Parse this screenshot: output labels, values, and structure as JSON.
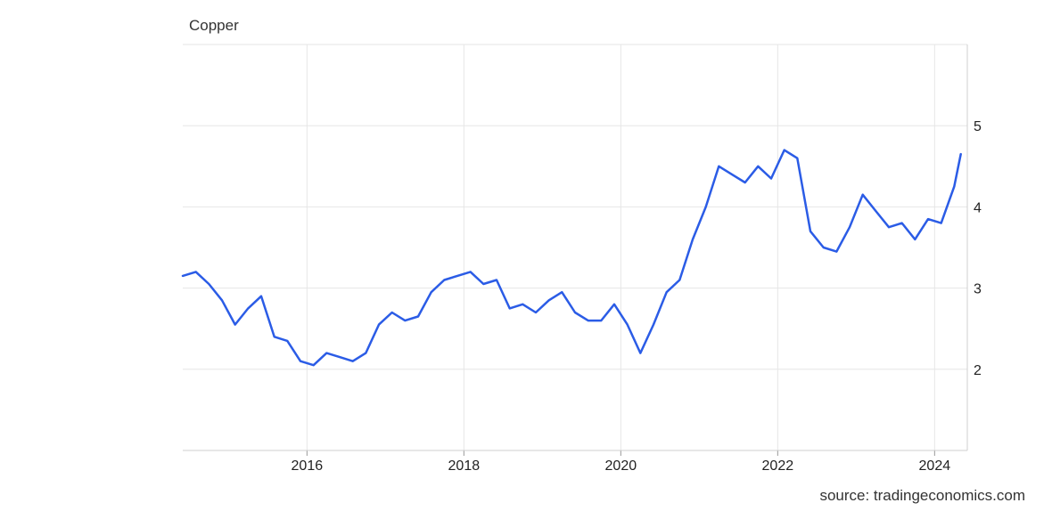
{
  "chart_data": {
    "type": "line",
    "title": "Copper",
    "xlabel": "",
    "ylabel": "",
    "ylim": [
      1,
      6
    ],
    "xlim": [
      "2014-06",
      "2024-06"
    ],
    "x_ticks": [
      "2016",
      "2018",
      "2020",
      "2022",
      "2024"
    ],
    "y_ticks": [
      "2",
      "3",
      "4",
      "5"
    ],
    "grid": true,
    "legend": "none",
    "line_color": "#2b5ce6",
    "series": [
      {
        "x": [
          "2014-06",
          "2014-08",
          "2014-10",
          "2014-12",
          "2015-02",
          "2015-04",
          "2015-06",
          "2015-08",
          "2015-10",
          "2015-12",
          "2016-02",
          "2016-04",
          "2016-06",
          "2016-08",
          "2016-10",
          "2016-12",
          "2017-02",
          "2017-04",
          "2017-06",
          "2017-08",
          "2017-10",
          "2017-12",
          "2018-02",
          "2018-04",
          "2018-06",
          "2018-08",
          "2018-10",
          "2018-12",
          "2019-02",
          "2019-04",
          "2019-06",
          "2019-08",
          "2019-10",
          "2019-12",
          "2020-02",
          "2020-04",
          "2020-06",
          "2020-08",
          "2020-10",
          "2020-12",
          "2021-02",
          "2021-04",
          "2021-06",
          "2021-08",
          "2021-10",
          "2021-12",
          "2022-02",
          "2022-04",
          "2022-06",
          "2022-08",
          "2022-10",
          "2022-12",
          "2023-02",
          "2023-04",
          "2023-06",
          "2023-08",
          "2023-10",
          "2023-12",
          "2024-02",
          "2024-04",
          "2024-05"
        ],
        "values": [
          3.15,
          3.2,
          3.05,
          2.85,
          2.55,
          2.75,
          2.9,
          2.4,
          2.35,
          2.1,
          2.05,
          2.2,
          2.15,
          2.1,
          2.2,
          2.55,
          2.7,
          2.6,
          2.65,
          2.95,
          3.1,
          3.15,
          3.2,
          3.05,
          3.1,
          2.75,
          2.8,
          2.7,
          2.85,
          2.95,
          2.7,
          2.6,
          2.6,
          2.8,
          2.55,
          2.2,
          2.55,
          2.95,
          3.1,
          3.6,
          4.0,
          4.5,
          4.4,
          4.3,
          4.5,
          4.35,
          4.7,
          4.6,
          3.7,
          3.5,
          3.45,
          3.75,
          4.15,
          3.95,
          3.75,
          3.8,
          3.6,
          3.85,
          3.8,
          4.25,
          4.65
        ]
      }
    ]
  },
  "source": "source: tradingeconomics.com"
}
